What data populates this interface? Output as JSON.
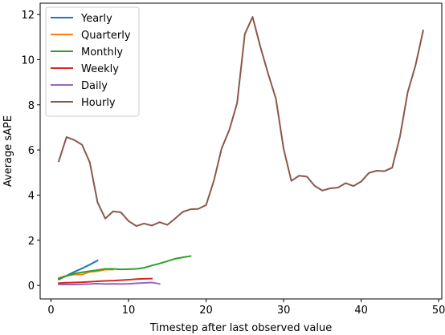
{
  "chart_data": {
    "type": "line",
    "title": "",
    "xlabel": "Timestep after last observed value",
    "ylabel": "Average sAPE",
    "xlim": [
      -1.4,
      50.4
    ],
    "ylim": [
      -0.6,
      12.5
    ],
    "xticks": [
      0,
      10,
      20,
      30,
      40,
      50
    ],
    "yticks": [
      0,
      2,
      4,
      6,
      8,
      10,
      12
    ],
    "grid": false,
    "legend_position": "top-left",
    "series": [
      {
        "name": "Yearly",
        "color": "#1f77b4",
        "x": [
          1,
          2,
          3,
          4,
          5,
          6
        ],
        "y": [
          0.26,
          0.43,
          0.6,
          0.75,
          0.92,
          1.1
        ]
      },
      {
        "name": "Quarterly",
        "color": "#ff7f0e",
        "x": [
          1,
          2,
          3,
          4,
          5,
          6,
          7,
          8
        ],
        "y": [
          0.33,
          0.43,
          0.48,
          0.48,
          0.6,
          0.63,
          0.7,
          0.7
        ]
      },
      {
        "name": "Monthly",
        "color": "#2ca02c",
        "x": [
          1,
          2,
          3,
          4,
          5,
          6,
          7,
          8,
          9,
          10,
          11,
          12,
          13,
          14,
          15,
          16,
          17,
          18
        ],
        "y": [
          0.3,
          0.42,
          0.52,
          0.58,
          0.63,
          0.68,
          0.73,
          0.73,
          0.71,
          0.72,
          0.73,
          0.78,
          0.88,
          0.97,
          1.07,
          1.18,
          1.24,
          1.3
        ]
      },
      {
        "name": "Weekly",
        "color": "#d62728",
        "x": [
          1,
          2,
          3,
          4,
          5,
          6,
          7,
          8,
          9,
          10,
          11,
          12,
          13
        ],
        "y": [
          0.1,
          0.12,
          0.13,
          0.14,
          0.16,
          0.18,
          0.2,
          0.21,
          0.23,
          0.25,
          0.28,
          0.29,
          0.3
        ]
      },
      {
        "name": "Daily",
        "color": "#9467bd",
        "x": [
          1,
          2,
          3,
          4,
          5,
          6,
          7,
          8,
          9,
          10,
          11,
          12,
          13,
          14
        ],
        "y": [
          0.04,
          0.04,
          0.04,
          0.05,
          0.06,
          0.08,
          0.06,
          0.07,
          0.06,
          0.07,
          0.09,
          0.11,
          0.13,
          0.07
        ]
      },
      {
        "name": "Hourly",
        "color": "#8c564b",
        "x": [
          1,
          2,
          3,
          4,
          5,
          6,
          7,
          8,
          9,
          10,
          11,
          12,
          13,
          14,
          15,
          16,
          17,
          18,
          19,
          20,
          21,
          22,
          23,
          24,
          25,
          26,
          27,
          28,
          29,
          30,
          31,
          32,
          33,
          34,
          35,
          36,
          37,
          38,
          39,
          40,
          41,
          42,
          43,
          44,
          45,
          46,
          47,
          48
        ],
        "y": [
          5.5,
          6.57,
          6.44,
          6.23,
          5.45,
          3.68,
          2.96,
          3.28,
          3.24,
          2.85,
          2.63,
          2.74,
          2.65,
          2.8,
          2.68,
          2.96,
          3.26,
          3.37,
          3.39,
          3.56,
          4.63,
          6.06,
          6.89,
          8.07,
          11.14,
          11.89,
          10.57,
          9.38,
          8.28,
          6.05,
          4.63,
          4.86,
          4.82,
          4.41,
          4.2,
          4.3,
          4.33,
          4.53,
          4.4,
          4.6,
          4.98,
          5.08,
          5.06,
          5.21,
          6.58,
          8.55,
          9.73,
          11.29
        ]
      }
    ]
  }
}
